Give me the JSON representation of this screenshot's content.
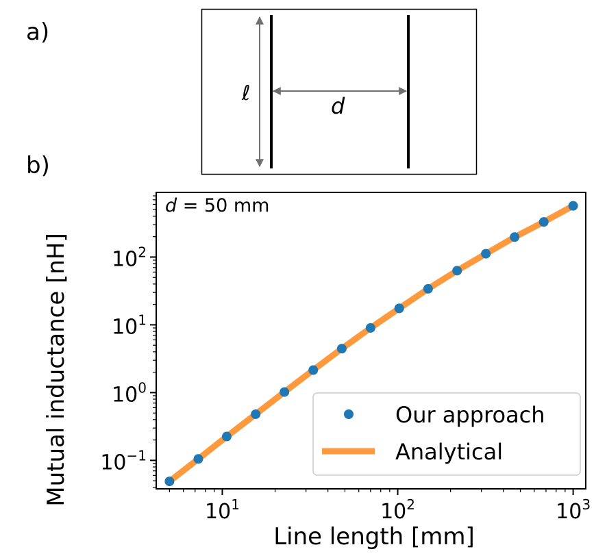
{
  "panel_a": {
    "label": "a)",
    "length_symbol": "ℓ",
    "distance_symbol": "d"
  },
  "panel_b": {
    "label": "b)"
  },
  "chart_data": {
    "type": "scatter",
    "xscale": "log",
    "yscale": "log",
    "xlabel": "Line length [mm]",
    "ylabel": "Mutual inductance [nH]",
    "xlim": [
      4.2,
      1180
    ],
    "ylim": [
      0.038,
      900
    ],
    "xticks": [
      {
        "base": "10",
        "exp": "1",
        "value": 10
      },
      {
        "base": "10",
        "exp": "2",
        "value": 100
      },
      {
        "base": "10",
        "exp": "3",
        "value": 1000
      }
    ],
    "yticks": [
      {
        "base": "10",
        "exp": "−1",
        "value": 0.1
      },
      {
        "base": "10",
        "exp": "0",
        "value": 1
      },
      {
        "base": "10",
        "exp": "1",
        "value": 10
      },
      {
        "base": "10",
        "exp": "2",
        "value": 100
      }
    ],
    "annotation": {
      "var": "d",
      "text": " = 50 mm"
    },
    "legend_position": "lower-right",
    "series": [
      {
        "name": "Our approach",
        "kind": "markers",
        "color": "#1f77b4",
        "x": [
          5,
          7.3,
          10.6,
          15.5,
          22.6,
          33,
          48,
          70,
          102,
          149,
          218,
          318,
          464,
          680,
          1000
        ],
        "y": [
          0.049,
          0.105,
          0.225,
          0.48,
          1.02,
          2.15,
          4.45,
          9.0,
          17.5,
          34.0,
          63.0,
          112,
          197,
          330,
          570
        ]
      },
      {
        "name": "Analytical",
        "kind": "line",
        "color": "#ff7f0e",
        "x": [
          5,
          7.3,
          10.6,
          15.5,
          22.6,
          33,
          48,
          70,
          102,
          149,
          218,
          318,
          464,
          680,
          1000
        ],
        "y": [
          0.049,
          0.105,
          0.225,
          0.48,
          1.02,
          2.15,
          4.45,
          9.0,
          17.5,
          34.0,
          63.0,
          112,
          197,
          330,
          570
        ]
      }
    ]
  }
}
